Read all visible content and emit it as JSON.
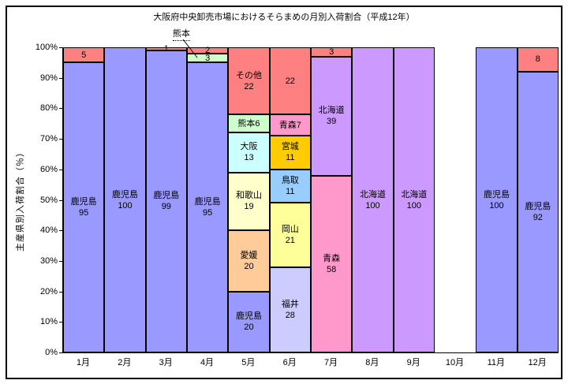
{
  "title": "大阪府中央卸売市場におけるそらまめの月別入荷割合（平成12年）",
  "y_axis": {
    "title": "主産県別入荷割合（％）",
    "ticks": [
      "0%",
      "10%",
      "20%",
      "30%",
      "40%",
      "50%",
      "60%",
      "70%",
      "80%",
      "90%",
      "100%"
    ],
    "min": 0,
    "max": 100
  },
  "annotation": {
    "text": "熊本",
    "target_month": "4月",
    "target_segment_value": 3
  },
  "palette": {
    "kagoshima": "#9999FF",
    "other": "#FF8080",
    "kumamoto": "#CCFFCC",
    "osaka": "#CCFFFF",
    "wakayama": "#FFFFCC",
    "ehime": "#FFCC99",
    "aomori": "#FF99CC",
    "miyagi": "#FFCC00",
    "tottori": "#99CCFF",
    "okayama": "#FFFF99",
    "fukui": "#CCCCFF",
    "hokkaido": "#CC99FF"
  },
  "chart_data": {
    "type": "bar",
    "stacked": true,
    "unit": "%",
    "title": "大阪府中央卸売市場におけるそらまめの月別入荷割合（平成12年）",
    "xlabel": "",
    "ylabel": "主産県別入荷割合（％）",
    "ylim": [
      0,
      100
    ],
    "grid": false,
    "legend": "none",
    "categories": [
      "1月",
      "2月",
      "3月",
      "4月",
      "5月",
      "6月",
      "7月",
      "8月",
      "9月",
      "10月",
      "11月",
      "12月"
    ],
    "months": [
      {
        "month": "1月",
        "segments": [
          {
            "key": "other",
            "name": "その他",
            "value": 5,
            "label_lines": [
              "5"
            ],
            "color": "#FF8080"
          },
          {
            "key": "kagoshima",
            "name": "鹿児島",
            "value": 95,
            "label_lines": [
              "鹿児島",
              "95"
            ],
            "color": "#9999FF"
          }
        ]
      },
      {
        "month": "2月",
        "segments": [
          {
            "key": "kagoshima",
            "name": "鹿児島",
            "value": 100,
            "label_lines": [
              "鹿児島",
              "100"
            ],
            "color": "#9999FF"
          }
        ]
      },
      {
        "month": "3月",
        "segments": [
          {
            "key": "other",
            "name": "その他",
            "value": 1,
            "label_lines": [
              "1"
            ],
            "color": "#FF8080"
          },
          {
            "key": "kagoshima",
            "name": "鹿児島",
            "value": 99,
            "label_lines": [
              "鹿児島",
              "99"
            ],
            "color": "#9999FF"
          }
        ]
      },
      {
        "month": "4月",
        "segments": [
          {
            "key": "other",
            "name": "その他",
            "value": 2,
            "label_lines": [
              "2"
            ],
            "color": "#FF8080"
          },
          {
            "key": "kumamoto",
            "name": "熊本",
            "value": 3,
            "label_lines": [
              "3"
            ],
            "color": "#CCFFCC"
          },
          {
            "key": "kagoshima",
            "name": "鹿児島",
            "value": 95,
            "label_lines": [
              "鹿児島",
              "95"
            ],
            "color": "#9999FF"
          }
        ]
      },
      {
        "month": "5月",
        "segments": [
          {
            "key": "other",
            "name": "その他",
            "value": 22,
            "label_lines": [
              "その他",
              "22"
            ],
            "color": "#FF8080"
          },
          {
            "key": "kumamoto",
            "name": "熊本",
            "value": 6,
            "label_lines": [
              "熊本6"
            ],
            "color": "#CCFFCC"
          },
          {
            "key": "osaka",
            "name": "大阪",
            "value": 13,
            "label_lines": [
              "大阪",
              "13"
            ],
            "color": "#CCFFFF"
          },
          {
            "key": "wakayama",
            "name": "和歌山",
            "value": 19,
            "label_lines": [
              "和歌山",
              "19"
            ],
            "color": "#FFFFCC"
          },
          {
            "key": "ehime",
            "name": "愛媛",
            "value": 20,
            "label_lines": [
              "愛媛",
              "20"
            ],
            "color": "#FFCC99"
          },
          {
            "key": "kagoshima",
            "name": "鹿児島",
            "value": 20,
            "label_lines": [
              "鹿児島",
              "20"
            ],
            "color": "#9999FF"
          }
        ]
      },
      {
        "month": "6月",
        "segments": [
          {
            "key": "other",
            "name": "その他",
            "value": 22,
            "label_lines": [
              "22"
            ],
            "color": "#FF8080"
          },
          {
            "key": "aomori",
            "name": "青森",
            "value": 7,
            "label_lines": [
              "青森7"
            ],
            "color": "#FF99CC"
          },
          {
            "key": "miyagi",
            "name": "宮城",
            "value": 11,
            "label_lines": [
              "宮城",
              "11"
            ],
            "color": "#FFCC00"
          },
          {
            "key": "tottori",
            "name": "鳥取",
            "value": 11,
            "label_lines": [
              "鳥取",
              "11"
            ],
            "color": "#99CCFF"
          },
          {
            "key": "okayama",
            "name": "岡山",
            "value": 21,
            "label_lines": [
              "岡山",
              "21"
            ],
            "color": "#FFFF99"
          },
          {
            "key": "fukui",
            "name": "福井",
            "value": 28,
            "label_lines": [
              "福井",
              "28"
            ],
            "color": "#CCCCFF"
          }
        ]
      },
      {
        "month": "7月",
        "segments": [
          {
            "key": "other",
            "name": "その他",
            "value": 3,
            "label_lines": [
              "3"
            ],
            "color": "#FF8080"
          },
          {
            "key": "hokkaido",
            "name": "北海道",
            "value": 39,
            "label_lines": [
              "北海道",
              "39"
            ],
            "color": "#CC99FF"
          },
          {
            "key": "aomori",
            "name": "青森",
            "value": 58,
            "label_lines": [
              "青森",
              "58"
            ],
            "color": "#FF99CC"
          }
        ]
      },
      {
        "month": "8月",
        "segments": [
          {
            "key": "hokkaido",
            "name": "北海道",
            "value": 100,
            "label_lines": [
              "北海道",
              "100"
            ],
            "color": "#CC99FF"
          }
        ]
      },
      {
        "month": "9月",
        "segments": [
          {
            "key": "hokkaido",
            "name": "北海道",
            "value": 100,
            "label_lines": [
              "北海道",
              "100"
            ],
            "color": "#CC99FF"
          }
        ]
      },
      {
        "month": "10月",
        "segments": []
      },
      {
        "month": "11月",
        "segments": [
          {
            "key": "kagoshima",
            "name": "鹿児島",
            "value": 100,
            "label_lines": [
              "鹿児島",
              "100"
            ],
            "color": "#9999FF"
          }
        ]
      },
      {
        "month": "12月",
        "segments": [
          {
            "key": "other",
            "name": "その他",
            "value": 8,
            "label_lines": [
              "8"
            ],
            "color": "#FF8080"
          },
          {
            "key": "kagoshima",
            "name": "鹿児島",
            "value": 92,
            "label_lines": [
              "鹿児島",
              "92"
            ],
            "color": "#9999FF"
          }
        ]
      }
    ]
  }
}
